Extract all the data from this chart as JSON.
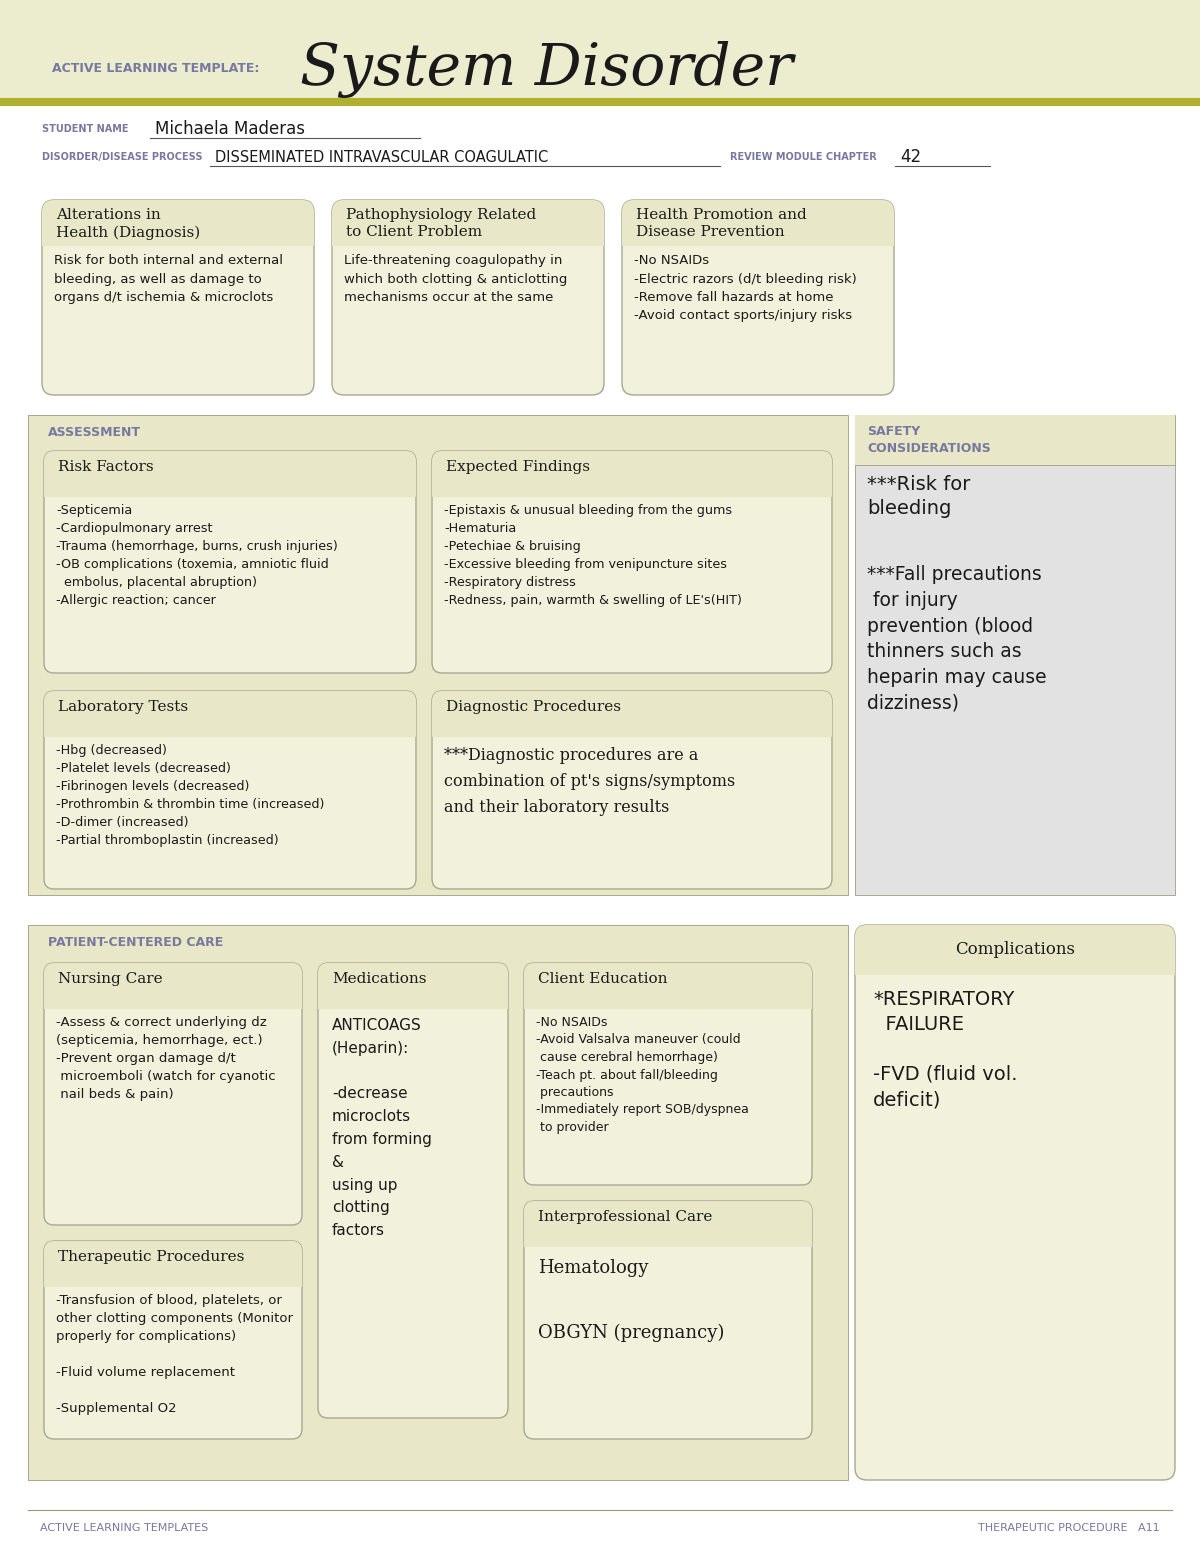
{
  "bg_color": "#f5f5e8",
  "white": "#ffffff",
  "header_bg": "#ececcf",
  "box_bg": "#f2f2dc",
  "section_bg": "#e8e8c8",
  "safety_bg": "#e2e2e2",
  "safety_header_bg": "#e8e8c8",
  "border_color": "#a8a890",
  "purple_color": "#7878a0",
  "dark_text": "#1a1a1a",
  "olive_stripe": "#b0b030",
  "title_system": "System Disorder",
  "title_template": "ACTIVE LEARNING TEMPLATE:",
  "student_label": "STUDENT NAME",
  "student_name": "Michaela Maderas",
  "disorder_label": "DISORDER/DISEASE PROCESS",
  "disorder_name": "DISSEMINATED INTRAVASCULAR COAGULATIC",
  "review_label": "REVIEW MODULE CHAPTER",
  "review_num": "42",
  "box1_title": "Alterations in\nHealth (Diagnosis)",
  "box1_body": "Risk for both internal and external\nbleeding, as well as damage to\norgans d/t ischemia & microclots",
  "box2_title": "Pathophysiology Related\nto Client Problem",
  "box2_body": "Life-threatening coagulopathy in\nwhich both clotting & anticlotting\nmechanisms occur at the same",
  "box3_title": "Health Promotion and\nDisease Prevention",
  "box3_body": "-No NSAIDs\n-Electric razors (d/t bleeding risk)\n-Remove fall hazards at home\n-Avoid contact sports/injury risks",
  "assessment_label": "ASSESSMENT",
  "safety_label": "SAFETY\nCONSIDERATIONS",
  "risk_title": "Risk Factors",
  "risk_body": "-Septicemia\n-Cardiopulmonary arrest\n-Trauma (hemorrhage, burns, crush injuries)\n-OB complications (toxemia, amniotic fluid\n  embolus, placental abruption)\n-Allergic reaction; cancer",
  "expected_title": "Expected Findings",
  "expected_body": "-Epistaxis & unusual bleeding from the gums\n-Hematuria\n-Petechiae & bruising\n-Excessive bleeding from venipuncture sites\n-Respiratory distress\n-Redness, pain, warmth & swelling of LE's(HIT)",
  "safety_text1": "***Risk for\nbleeding",
  "safety_text2": "***Fall precautions\n for injury\nprevention (blood\nthinners such as\nheparin may cause\ndizziness)",
  "lab_title": "Laboratory Tests",
  "lab_body": "-Hbg (decreased)\n-Platelet levels (decreased)\n-Fibrinogen levels (decreased)\n-Prothrombin & thrombin time (increased)\n-D-dimer (increased)\n-Partial thromboplastin (increased)",
  "diag_title": "Diagnostic Procedures",
  "diag_body": "***Diagnostic procedures are a\ncombination of pt's signs/symptoms\nand their laboratory results",
  "pcc_label": "PATIENT-CENTERED CARE",
  "comp_title": "Complications",
  "comp_body": "*RESPIRATORY\n  FAILURE\n\n-FVD (fluid vol.\ndeficit)",
  "nursing_title": "Nursing Care",
  "nursing_body": "-Assess & correct underlying dz\n(septicemia, hemorrhage, ect.)\n-Prevent organ damage d/t\n microemboli (watch for cyanotic\n nail beds & pain)",
  "meds_title": "Medications",
  "meds_body": "ANTICOAGS\n(Heparin):\n\n-decrease\nmicroclots\nfrom forming\n&\nusing up\nclotting\nfactors",
  "client_title": "Client Education",
  "client_body": "-No NSAIDs\n-Avoid Valsalva maneuver (could\n cause cerebral hemorrhage)\n-Teach pt. about fall/bleeding\n precautions\n-Immediately report SOB/dyspnea\n to provider",
  "therapeutic_title": "Therapeutic Procedures",
  "therapeutic_body": "-Transfusion of blood, platelets, or\nother clotting components (Monitor\nproperly for complications)\n\n-Fluid volume replacement\n\n-Supplemental O2",
  "interprof_title": "Interprofessional Care",
  "interprof_body": "Hematology\n\nOBGYN (pregnancy)",
  "footer_left": "ACTIVE LEARNING TEMPLATES",
  "footer_right": "THERAPEUTIC PROCEDURE   A11"
}
